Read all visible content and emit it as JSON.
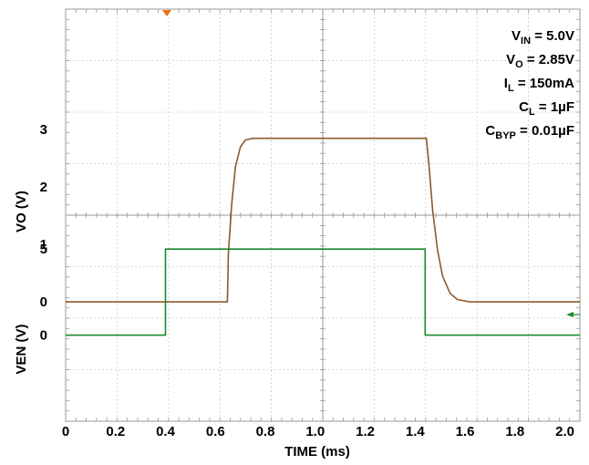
{
  "chart_data": {
    "type": "line",
    "xlabel": "TIME (ms)",
    "x_ticks": [
      "0",
      "0.2",
      "0.4",
      "0.6",
      "0.8",
      "1.0",
      "1.2",
      "1.4",
      "1.6",
      "1.8",
      "2.0"
    ],
    "xlim": [
      0,
      2.06
    ],
    "grid": true,
    "panels": [
      {
        "ylabel": "VO (V)",
        "y_ticks": [
          "0",
          "1",
          "2",
          "3"
        ],
        "ylim": [
          -0.3,
          5.1
        ],
        "series": [
          {
            "color": "#8b5a2b",
            "x": [
              0,
              0.648,
              0.652,
              0.665,
              0.68,
              0.7,
              0.72,
              0.75,
              1.0,
              1.2,
              1.445,
              1.455,
              1.47,
              1.49,
              1.51,
              1.54,
              1.57,
              1.62,
              2.06
            ],
            "y": [
              0,
              0,
              0.85,
              1.7,
              2.35,
              2.7,
              2.82,
              2.85,
              2.85,
              2.85,
              2.85,
              2.4,
              1.6,
              0.9,
              0.45,
              0.15,
              0.04,
              0,
              0
            ]
          }
        ]
      },
      {
        "ylabel": "VEN (V)",
        "y_ticks": [
          "0",
          "5"
        ],
        "ylim": [
          -5,
          5.7
        ],
        "series": [
          {
            "color": "#1a8a2a",
            "x": [
              0,
              0.4,
              0.4,
              1.44,
              1.44,
              2.06
            ],
            "y": [
              0,
              0,
              5,
              5,
              0,
              0
            ]
          }
        ]
      }
    ],
    "annotations": [
      {
        "main": "V",
        "sub": "IN",
        "rest": " = 5.0V"
      },
      {
        "main": "V",
        "sub": "O",
        "rest": " = 2.85V"
      },
      {
        "main": "I",
        "sub": "L",
        "rest": " = 150mA"
      },
      {
        "main": "C",
        "sub": "L",
        "rest": " = 1µF"
      },
      {
        "main": "C",
        "sub": "BYP",
        "rest": " = 0.01µF"
      }
    ],
    "colors": {
      "vo_trace": "#8b5a2b",
      "ven_trace": "#1a8a2a",
      "trigger_marker": "#e8731a",
      "ground_marker": "#1a8a2a",
      "grid": "#bdbdbd"
    }
  }
}
